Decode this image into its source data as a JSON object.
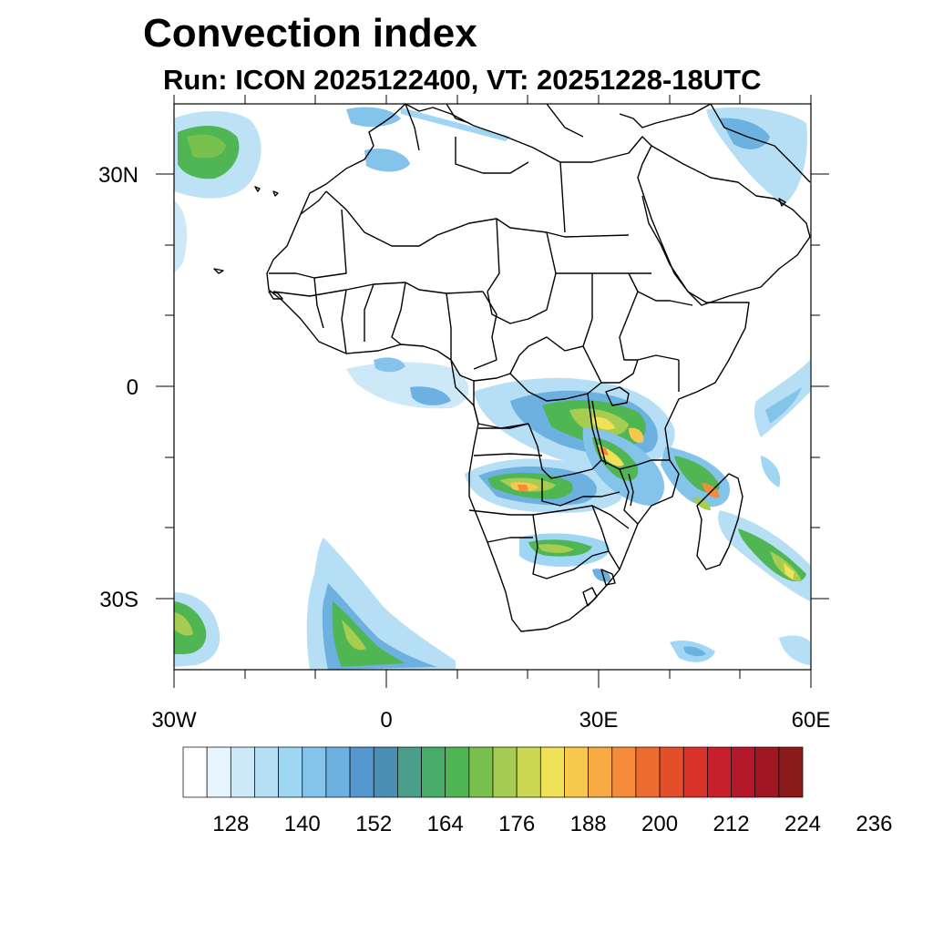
{
  "header": {
    "title": "Convection index",
    "subtitle": "Run: ICON 2025122400,  VT: 20251228-18UTC"
  },
  "axes": {
    "lon_labels": [
      "30W",
      "0",
      "30E",
      "60E"
    ],
    "lat_labels": [
      "30N",
      "0",
      "30S"
    ]
  },
  "colorbar": {
    "colors": [
      "#ffffff",
      "#e8f4fb",
      "#cde9f7",
      "#b6dff5",
      "#9ed6f3",
      "#84c3ea",
      "#6cb1e0",
      "#5598cf",
      "#4c8fb4",
      "#4a9e8b",
      "#49ab6a",
      "#4fb653",
      "#79c14f",
      "#a7cc52",
      "#cad852",
      "#efe257",
      "#f8c84d",
      "#f7a944",
      "#f48c3a",
      "#ee6c30",
      "#e44f2b",
      "#d93229",
      "#c8202a",
      "#b5182b",
      "#a01621",
      "#8b1a1a"
    ],
    "tick_labels": [
      "128",
      "140",
      "152",
      "164",
      "176",
      "188",
      "200",
      "212",
      "224",
      "236"
    ]
  },
  "map": {
    "region": "Africa",
    "land_color": "#ffffff",
    "border_color": "#000000"
  }
}
